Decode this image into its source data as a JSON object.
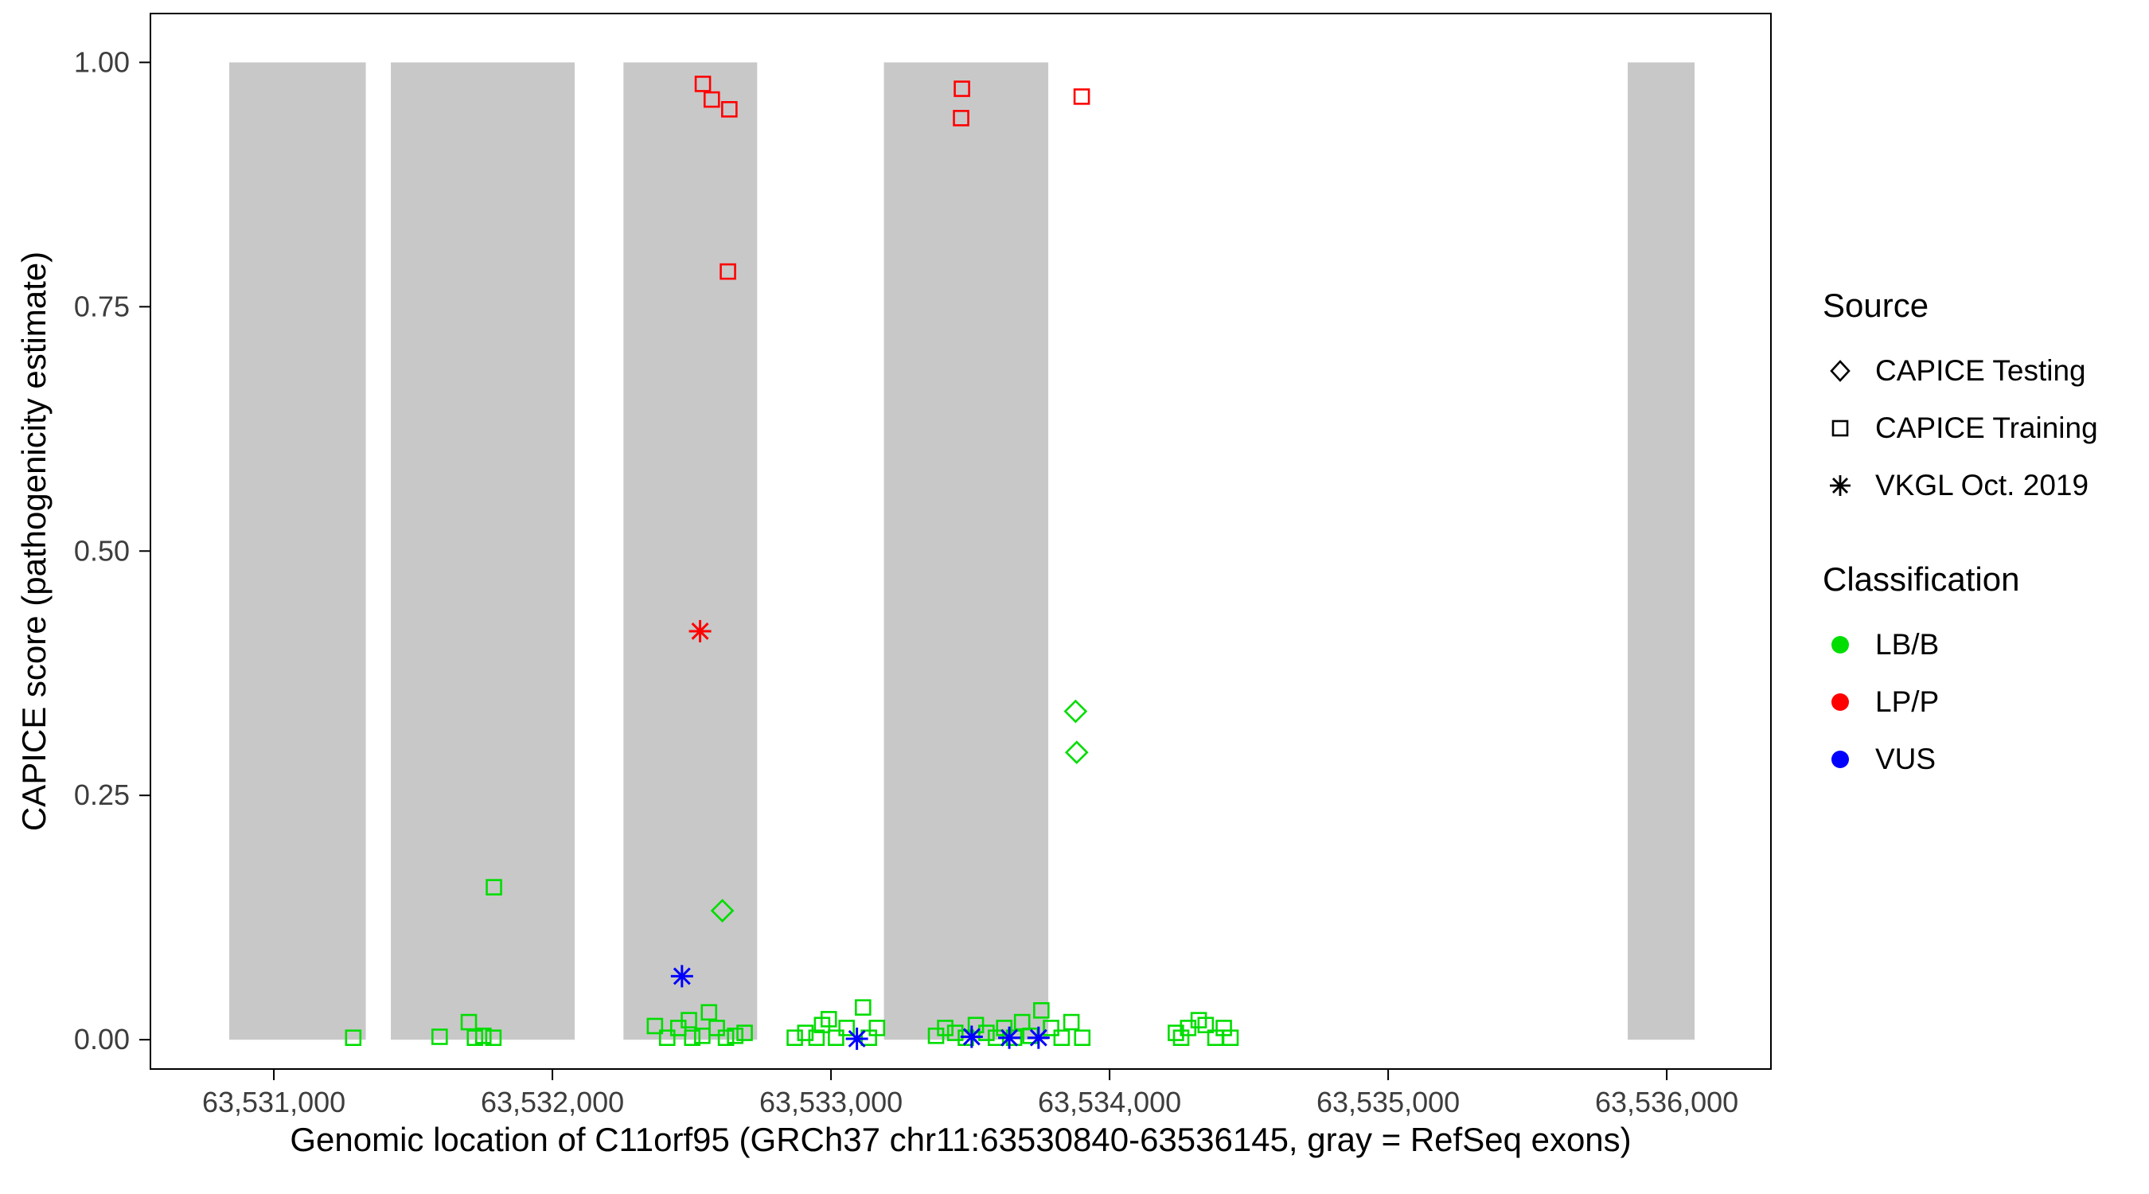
{
  "chart_data": {
    "type": "scatter",
    "title": "",
    "xlabel": "Genomic location of C11orf95 (GRCh37 chr11:63530840-63536145, gray = RefSeq exons)",
    "ylabel": "CAPICE score (pathogenicity estimate)",
    "xlim": [
      63530557,
      63536374
    ],
    "ylim": [
      -0.03,
      1.05
    ],
    "xticks": [
      63531000,
      63532000,
      63533000,
      63534000,
      63535000,
      63536000
    ],
    "xtick_labels": [
      "63,531,000",
      "63,532,000",
      "63,533,000",
      "63,534,000",
      "63,535,000",
      "63,536,000"
    ],
    "yticks": [
      0,
      0.25,
      0.5,
      0.75,
      1
    ],
    "ytick_labels": [
      "0.00",
      "0.25",
      "0.50",
      "0.75",
      "1.00"
    ],
    "grid": false,
    "exon_color": "#c8c8c8",
    "exons": [
      [
        63530840,
        63531330
      ],
      [
        63531420,
        63532080
      ],
      [
        63532255,
        63532735
      ],
      [
        63533190,
        63533780
      ],
      [
        63535860,
        63536100
      ]
    ],
    "series": [
      {
        "name": "LP/P - CAPICE Training",
        "source": "CAPICE Training",
        "classification": "LP/P",
        "marker": "square",
        "color": "#ff0000",
        "points": [
          [
            63532540,
            0.978
          ],
          [
            63532572,
            0.962
          ],
          [
            63532635,
            0.952
          ],
          [
            63532630,
            0.786
          ],
          [
            63533470,
            0.973
          ],
          [
            63533467,
            0.943
          ],
          [
            63533900,
            0.965
          ]
        ]
      },
      {
        "name": "LP/P - VKGL Oct. 2019",
        "source": "VKGL Oct. 2019",
        "classification": "LP/P",
        "marker": "asterisk",
        "color": "#ff0000",
        "points": [
          [
            63532530,
            0.418
          ]
        ]
      },
      {
        "name": "LB/B - CAPICE Testing",
        "source": "CAPICE Testing",
        "classification": "LB/B",
        "marker": "diamond",
        "color": "#00dd00",
        "points": [
          [
            63532610,
            0.132
          ],
          [
            63533878,
            0.336
          ],
          [
            63533882,
            0.294
          ]
        ]
      },
      {
        "name": "LB/B - CAPICE Training",
        "source": "CAPICE Training",
        "classification": "LB/B",
        "marker": "square",
        "color": "#00dd00",
        "points": [
          [
            63531285,
            0.002
          ],
          [
            63531595,
            0.003
          ],
          [
            63531700,
            0.018
          ],
          [
            63531722,
            0.002
          ],
          [
            63531752,
            0.004
          ],
          [
            63531788,
            0.002
          ],
          [
            63531790,
            0.156
          ],
          [
            63532368,
            0.014
          ],
          [
            63532412,
            0.002
          ],
          [
            63532452,
            0.012
          ],
          [
            63532490,
            0.02
          ],
          [
            63532502,
            0.002
          ],
          [
            63532538,
            0.004
          ],
          [
            63532562,
            0.028
          ],
          [
            63532590,
            0.012
          ],
          [
            63532623,
            0.002
          ],
          [
            63532656,
            0.004
          ],
          [
            63532690,
            0.007
          ],
          [
            63532870,
            0.002
          ],
          [
            63532908,
            0.007
          ],
          [
            63532948,
            0.002
          ],
          [
            63532968,
            0.015
          ],
          [
            63532992,
            0.021
          ],
          [
            63533018,
            0.002
          ],
          [
            63533056,
            0.012
          ],
          [
            63533115,
            0.033
          ],
          [
            63533136,
            0.002
          ],
          [
            63533165,
            0.012
          ],
          [
            63533377,
            0.004
          ],
          [
            63533410,
            0.012
          ],
          [
            63533446,
            0.007
          ],
          [
            63533484,
            0.002
          ],
          [
            63533520,
            0.015
          ],
          [
            63533558,
            0.007
          ],
          [
            63533592,
            0.002
          ],
          [
            63533622,
            0.012
          ],
          [
            63533657,
            0.002
          ],
          [
            63533686,
            0.018
          ],
          [
            63533716,
            0.004
          ],
          [
            63533755,
            0.03
          ],
          [
            63533790,
            0.012
          ],
          [
            63533828,
            0.002
          ],
          [
            63533863,
            0.018
          ],
          [
            63533902,
            0.002
          ],
          [
            63534238,
            0.007
          ],
          [
            63534257,
            0.002
          ],
          [
            63534282,
            0.012
          ],
          [
            63534320,
            0.02
          ],
          [
            63534345,
            0.015
          ],
          [
            63534380,
            0.002
          ],
          [
            63534410,
            0.012
          ],
          [
            63534434,
            0.002
          ]
        ]
      },
      {
        "name": "VUS - VKGL Oct. 2019",
        "source": "VKGL Oct. 2019",
        "classification": "VUS",
        "marker": "asterisk",
        "color": "#0000ff",
        "points": [
          [
            63532465,
            0.065
          ],
          [
            63533093,
            0.001
          ],
          [
            63533505,
            0.003
          ],
          [
            63533640,
            0.002
          ],
          [
            63533745,
            0.002
          ]
        ]
      }
    ]
  },
  "legend": {
    "source": {
      "title": "Source",
      "items": [
        {
          "label": "CAPICE Testing",
          "marker": "diamond"
        },
        {
          "label": "CAPICE Training",
          "marker": "square"
        },
        {
          "label": "VKGL Oct. 2019",
          "marker": "asterisk"
        }
      ]
    },
    "classification": {
      "title": "Classification",
      "items": [
        {
          "label": "LB/B",
          "color": "#00dd00"
        },
        {
          "label": "LP/P",
          "color": "#ff0000"
        },
        {
          "label": "VUS",
          "color": "#0000ff"
        }
      ]
    }
  }
}
